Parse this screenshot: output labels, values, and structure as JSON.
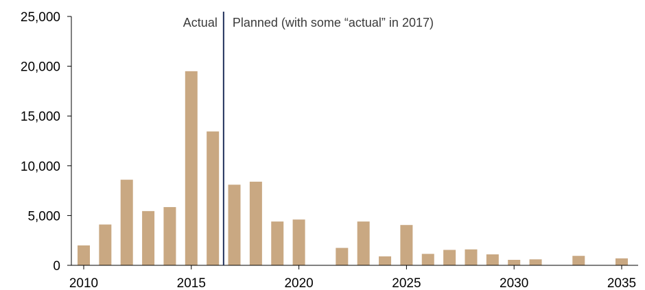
{
  "chart_data": {
    "type": "bar",
    "title": "",
    "xlabel": "",
    "ylabel": "",
    "categories": [
      2010,
      2011,
      2012,
      2013,
      2014,
      2015,
      2016,
      2017,
      2018,
      2019,
      2020,
      2021,
      2022,
      2023,
      2024,
      2025,
      2026,
      2027,
      2028,
      2029,
      2030,
      2031,
      2032,
      2033,
      2034,
      2035
    ],
    "values": [
      2000,
      4100,
      8600,
      5450,
      5850,
      19500,
      13450,
      8100,
      8400,
      4400,
      4600,
      0,
      1750,
      4400,
      900,
      4050,
      1150,
      1550,
      1600,
      1100,
      550,
      600,
      0,
      950,
      0,
      700
    ],
    "ylim": [
      0,
      25000
    ],
    "xlim": [
      2010,
      2035
    ],
    "y_ticks": [
      0,
      5000,
      10000,
      15000,
      20000,
      25000
    ],
    "y_tick_labels": [
      "0",
      "5,000",
      "10,000",
      "15,000",
      "20,000",
      "25,000"
    ],
    "x_ticks": [
      2010,
      2015,
      2020,
      2025,
      2030,
      2035
    ],
    "x_tick_labels": [
      "2010",
      "2015",
      "2020",
      "2025",
      "2030",
      "2035"
    ],
    "divider_x": 2016.5,
    "annotations": {
      "left": "Actual",
      "right": "Planned (with some “actual” in 2017)"
    },
    "grid": false,
    "legend": "none",
    "colors": {
      "bar": "#c9a882",
      "divider": "#1f2f5a",
      "axis": "#000000"
    }
  }
}
